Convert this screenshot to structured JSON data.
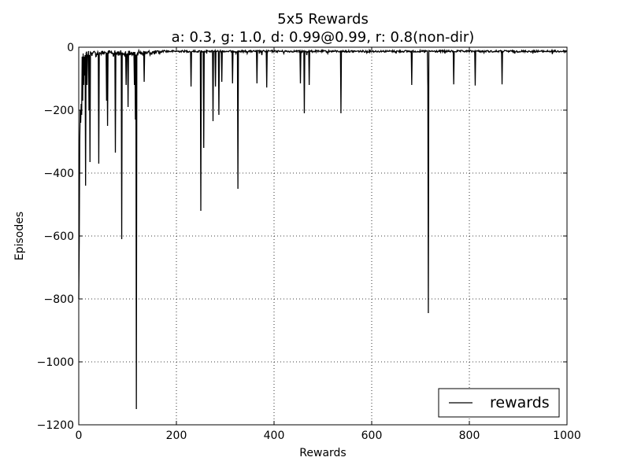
{
  "chart_data": {
    "type": "line",
    "title": "5x5 Rewards",
    "subtitle": "a: 0.3, g: 1.0, d: 0.99@0.99, r: 0.8(non-dir)",
    "xlabel": "Rewards",
    "ylabel": "Episodes",
    "xlim": [
      0,
      1000
    ],
    "ylim": [
      -1200,
      0
    ],
    "xticks": [
      0,
      200,
      400,
      600,
      800,
      1000
    ],
    "yticks": [
      0,
      -200,
      -400,
      -600,
      -800,
      -1000,
      -1200
    ],
    "xtick_labels": [
      "0",
      "200",
      "400",
      "600",
      "800",
      "1000"
    ],
    "ytick_labels": [
      "0",
      "−200",
      "−400",
      "−600",
      "−800",
      "−1000",
      "−1200"
    ],
    "grid": true,
    "legend_position": "lower-right",
    "series": [
      {
        "name": "rewards",
        "color": "#000000",
        "baseline": -10,
        "spikes": [
          [
            0,
            -800
          ],
          [
            1,
            -620
          ],
          [
            2,
            -300
          ],
          [
            3,
            -200
          ],
          [
            4,
            -240
          ],
          [
            5,
            -180
          ],
          [
            6,
            -215
          ],
          [
            7,
            -30
          ],
          [
            8,
            -170
          ],
          [
            9,
            -20
          ],
          [
            10,
            -120
          ],
          [
            11,
            -30
          ],
          [
            12,
            -90
          ],
          [
            13,
            -25
          ],
          [
            14,
            -440
          ],
          [
            15,
            -20
          ],
          [
            17,
            -120
          ],
          [
            19,
            -30
          ],
          [
            21,
            -200
          ],
          [
            23,
            -365
          ],
          [
            26,
            -20
          ],
          [
            30,
            -15
          ],
          [
            35,
            -30
          ],
          [
            41,
            -370
          ],
          [
            45,
            -20
          ],
          [
            52,
            -20
          ],
          [
            57,
            -170
          ],
          [
            59,
            -250
          ],
          [
            62,
            -20
          ],
          [
            68,
            -20
          ],
          [
            71,
            -30
          ],
          [
            75,
            -335
          ],
          [
            80,
            -15
          ],
          [
            85,
            -20
          ],
          [
            88,
            -610
          ],
          [
            92,
            -20
          ],
          [
            97,
            -120
          ],
          [
            101,
            -190
          ],
          [
            105,
            -25
          ],
          [
            110,
            -20
          ],
          [
            114,
            -120
          ],
          [
            116,
            -230
          ],
          [
            118,
            -1150
          ],
          [
            122,
            -20
          ],
          [
            127,
            -15
          ],
          [
            134,
            -110
          ],
          [
            140,
            -20
          ],
          [
            146,
            -25
          ],
          [
            152,
            -15
          ],
          [
            158,
            -20
          ],
          [
            165,
            -15
          ],
          [
            175,
            -10
          ],
          [
            190,
            -12
          ],
          [
            230,
            -125
          ],
          [
            240,
            -15
          ],
          [
            250,
            -520
          ],
          [
            256,
            -320
          ],
          [
            262,
            -20
          ],
          [
            268,
            -15
          ],
          [
            275,
            -235
          ],
          [
            280,
            -125
          ],
          [
            287,
            -215
          ],
          [
            293,
            -110
          ],
          [
            300,
            -15
          ],
          [
            315,
            -115
          ],
          [
            322,
            -20
          ],
          [
            326,
            -450
          ],
          [
            335,
            -15
          ],
          [
            345,
            -20
          ],
          [
            365,
            -115
          ],
          [
            370,
            -20
          ],
          [
            375,
            -25
          ],
          [
            385,
            -128
          ],
          [
            400,
            -15
          ],
          [
            420,
            -20
          ],
          [
            440,
            -15
          ],
          [
            454,
            -115
          ],
          [
            462,
            -210
          ],
          [
            467,
            -25
          ],
          [
            472,
            -120
          ],
          [
            490,
            -15
          ],
          [
            510,
            -20
          ],
          [
            537,
            -210
          ],
          [
            560,
            -15
          ],
          [
            590,
            -18
          ],
          [
            620,
            -15
          ],
          [
            650,
            -20
          ],
          [
            682,
            -120
          ],
          [
            700,
            -15
          ],
          [
            715,
            -125
          ],
          [
            716,
            -845
          ],
          [
            730,
            -15
          ],
          [
            750,
            -20
          ],
          [
            768,
            -118
          ],
          [
            790,
            -15
          ],
          [
            812,
            -122
          ],
          [
            830,
            -18
          ],
          [
            850,
            -15
          ],
          [
            867,
            -118
          ],
          [
            880,
            -15
          ],
          [
            893,
            -20
          ],
          [
            910,
            -15
          ],
          [
            930,
            -20
          ],
          [
            950,
            -15
          ],
          [
            970,
            -22
          ],
          [
            985,
            -15
          ],
          [
            999,
            -10
          ]
        ]
      }
    ]
  }
}
